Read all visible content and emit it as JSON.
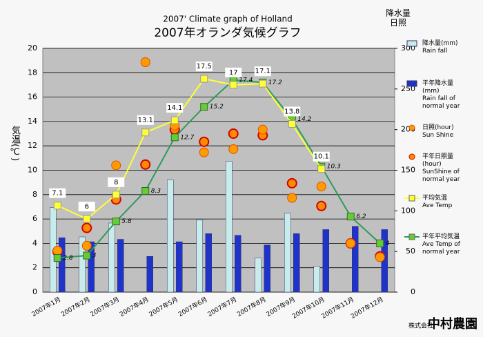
{
  "chart_data": {
    "type": "combo",
    "title": "2007' Climate graph of Holland",
    "subtitle": "2007年オランダ気候グラフ",
    "y_label": "気温(℃)",
    "y2_label": "降水量\n日照",
    "categories": [
      "2007年1月",
      "2007年2月",
      "2007年3月",
      "2007年4月",
      "2007年5月",
      "2007年6月",
      "2007年7月",
      "2007年8月",
      "2007年9月",
      "2007年10月",
      "2007年11月",
      "2007年12月"
    ],
    "ylim": [
      0,
      20
    ],
    "yticks": [
      0,
      2,
      4,
      6,
      8,
      10,
      12,
      14,
      16,
      18,
      20
    ],
    "y2lim": [
      0,
      300
    ],
    "y2ticks": [
      0,
      50,
      100,
      150,
      200,
      250,
      300
    ],
    "grid": true,
    "series": [
      {
        "name": "降水量(mm)\nRain fall",
        "type": "bar",
        "axis": "y2",
        "color": "#c8ecec",
        "values": [
          104,
          68,
          85,
          0,
          138,
          89,
          161,
          42,
          97,
          32,
          0,
          0
        ]
      },
      {
        "name": "平年降水量\n(mm)\nRain fall of\nnormal year",
        "type": "bar",
        "axis": "y2",
        "color": "#1f33c8",
        "values": [
          67,
          62,
          65,
          44,
          62,
          72,
          70,
          58,
          72,
          77,
          81,
          77
        ]
      },
      {
        "name": "日照(hour)\nSun Shine",
        "type": "scatter",
        "axis": "y2",
        "color": "#ff9a00",
        "values": [
          51,
          57,
          156,
          283,
          205,
          172,
          176,
          200,
          116,
          130,
          60,
          43
        ]
      },
      {
        "name": "平年日照量\n(hour)\nSunShine of\nnormal year",
        "type": "scatter2",
        "axis": "y2",
        "color": "#ff8c00",
        "values": [
          50,
          79,
          114,
          157,
          200,
          185,
          195,
          193,
          134,
          106,
          60,
          44
        ]
      },
      {
        "name": "平均気温\nAve Temp",
        "type": "line",
        "color": "#ffff33",
        "values": [
          7.1,
          6,
          8,
          13.1,
          14.1,
          17.5,
          17,
          17.1,
          13.8,
          10.1,
          null,
          null
        ]
      },
      {
        "name": "平年平均気温\nAve Temp of\nnormal year",
        "type": "line2",
        "color": "#2e9a5a",
        "values": [
          2.8,
          3,
          5.8,
          8.3,
          12.7,
          15.2,
          17.4,
          17.2,
          14.2,
          10.3,
          6.2,
          4
        ]
      }
    ],
    "logo_small": "株式会社",
    "logo": "中村農園"
  }
}
